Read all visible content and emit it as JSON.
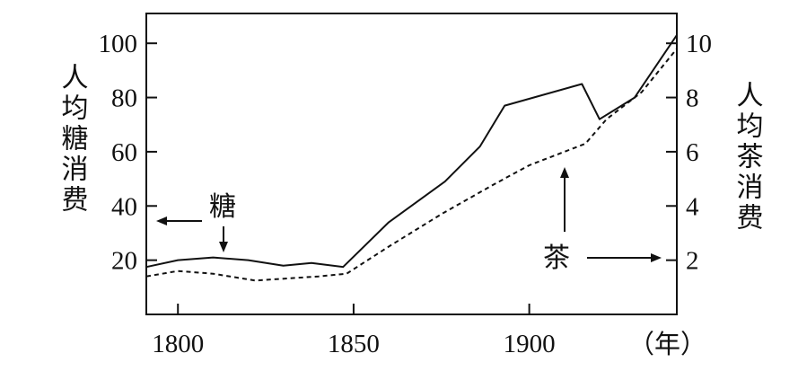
{
  "chart_data": {
    "type": "line",
    "x_unit": "（年）",
    "xticks": [
      1800,
      1850,
      1900
    ],
    "xlim": [
      1791,
      1942
    ],
    "left_axis": {
      "label": "人均糖消费",
      "ticks": [
        20,
        40,
        60,
        80,
        100
      ],
      "ylim": [
        0,
        111
      ]
    },
    "right_axis": {
      "label": "人均茶消费",
      "ticks": [
        2,
        4,
        6,
        8,
        10
      ],
      "ylim": [
        0,
        11.1
      ]
    },
    "series": [
      {
        "name": "糖",
        "axis": "left",
        "style": "solid",
        "x": [
          1791,
          1800,
          1810,
          1820,
          1830,
          1838,
          1847,
          1860,
          1876,
          1886,
          1893,
          1915,
          1920,
          1930,
          1942
        ],
        "y": [
          17.5,
          20,
          21,
          20,
          18,
          19,
          17.5,
          34,
          49,
          62,
          77,
          85,
          72,
          80,
          103
        ]
      },
      {
        "name": "茶",
        "axis": "right",
        "style": "dashed",
        "x": [
          1791,
          1800,
          1810,
          1822,
          1840,
          1848,
          1860,
          1875,
          1890,
          1900,
          1916,
          1922,
          1932,
          1942
        ],
        "y": [
          1.4,
          1.6,
          1.5,
          1.25,
          1.4,
          1.5,
          2.5,
          3.7,
          4.8,
          5.5,
          6.3,
          7.2,
          8.2,
          9.8
        ]
      }
    ],
    "annotations": [
      {
        "text": "糖",
        "target_series": "糖"
      },
      {
        "text": "茶",
        "target_series": "茶"
      }
    ],
    "grid": false
  }
}
